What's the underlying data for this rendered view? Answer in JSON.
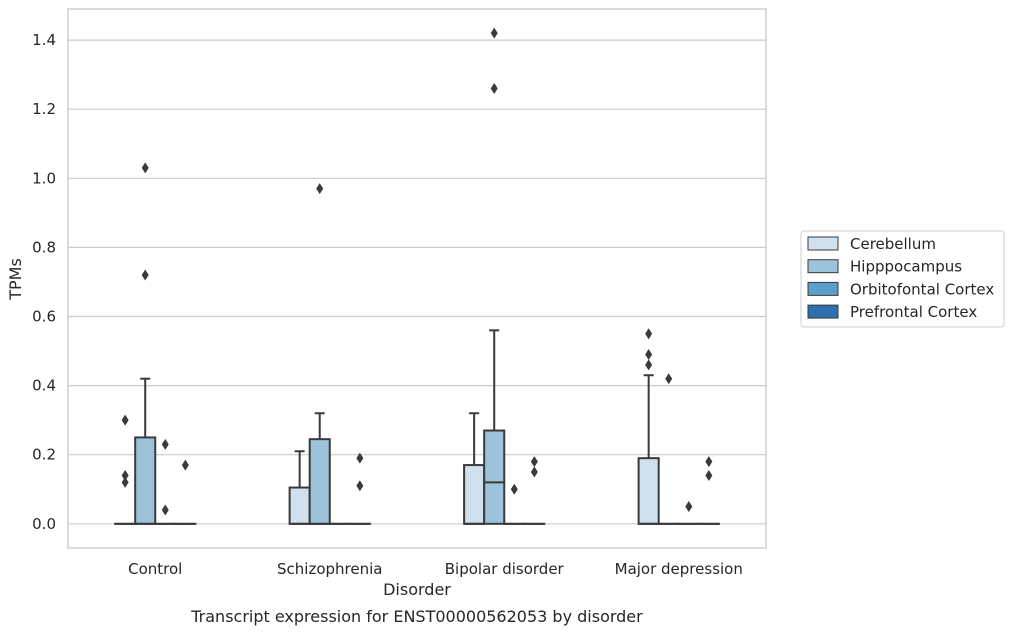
{
  "chart_data": {
    "type": "box",
    "caption": "Transcript expression for ENST00000562053 by disorder",
    "xlabel": "Disorder",
    "ylabel": "TPMs",
    "ylim": [
      -0.07,
      1.49
    ],
    "yticks": [
      0.0,
      0.2,
      0.4,
      0.6,
      0.8,
      1.0,
      1.2,
      1.4
    ],
    "ytick_labels": [
      "0.0",
      "0.2",
      "0.4",
      "0.6",
      "0.8",
      "1.0",
      "1.2",
      "1.4"
    ],
    "grid": "horizontal",
    "legend_position": "right",
    "categories": [
      "Control",
      "Schizophrenia",
      "Bipolar disorder",
      "Major depression"
    ],
    "series": [
      {
        "name": "Cerebellum",
        "color": "#d0e0ef",
        "boxes": [
          {
            "q1": 0,
            "median": 0,
            "q3": 0,
            "whisker_low": 0,
            "whisker_high": 0,
            "outliers": [
              0.3,
              0.14,
              0.12
            ]
          },
          {
            "q1": 0,
            "median": 0,
            "q3": 0.105,
            "whisker_low": 0,
            "whisker_high": 0.21,
            "outliers": []
          },
          {
            "q1": 0,
            "median": 0,
            "q3": 0.17,
            "whisker_low": 0,
            "whisker_high": 0.32,
            "outliers": []
          },
          {
            "q1": 0,
            "median": 0,
            "q3": 0.19,
            "whisker_low": 0,
            "whisker_high": 0.43,
            "outliers": [
              0.55,
              0.49,
              0.46
            ]
          }
        ]
      },
      {
        "name": "Hipppocampus",
        "color": "#9cc3d9",
        "boxes": [
          {
            "q1": 0,
            "median": 0,
            "q3": 0.25,
            "whisker_low": 0,
            "whisker_high": 0.42,
            "outliers": [
              1.03,
              0.72
            ]
          },
          {
            "q1": 0,
            "median": 0,
            "q3": 0.245,
            "whisker_low": 0,
            "whisker_high": 0.32,
            "outliers": [
              0.97
            ]
          },
          {
            "q1": 0,
            "median": 0.12,
            "q3": 0.27,
            "whisker_low": 0,
            "whisker_high": 0.56,
            "outliers": [
              1.42,
              1.26
            ]
          },
          {
            "q1": 0,
            "median": 0,
            "q3": 0,
            "whisker_low": 0,
            "whisker_high": 0,
            "outliers": [
              0.42
            ]
          }
        ]
      },
      {
        "name": "Orbitofontal Cortex",
        "color": "#5b9ec9",
        "boxes": [
          {
            "q1": 0,
            "median": 0,
            "q3": 0,
            "whisker_low": 0,
            "whisker_high": 0,
            "outliers": [
              0.23,
              0.04
            ]
          },
          {
            "q1": 0,
            "median": 0,
            "q3": 0,
            "whisker_low": 0,
            "whisker_high": 0,
            "outliers": []
          },
          {
            "q1": 0,
            "median": 0,
            "q3": 0,
            "whisker_low": 0,
            "whisker_high": 0,
            "outliers": [
              0.1
            ]
          },
          {
            "q1": 0,
            "median": 0,
            "q3": 0,
            "whisker_low": 0,
            "whisker_high": 0,
            "outliers": [
              0.05
            ]
          }
        ]
      },
      {
        "name": "Prefrontal Cortex",
        "color": "#2f6fae",
        "boxes": [
          {
            "q1": 0,
            "median": 0,
            "q3": 0,
            "whisker_low": 0,
            "whisker_high": 0,
            "outliers": [
              0.17
            ]
          },
          {
            "q1": 0,
            "median": 0,
            "q3": 0,
            "whisker_low": 0,
            "whisker_high": 0,
            "outliers": [
              0.19,
              0.11
            ]
          },
          {
            "q1": 0,
            "median": 0,
            "q3": 0,
            "whisker_low": 0,
            "whisker_high": 0,
            "outliers": [
              0.18,
              0.15
            ]
          },
          {
            "q1": 0,
            "median": 0,
            "q3": 0,
            "whisker_low": 0,
            "whisker_high": 0,
            "outliers": [
              0.18,
              0.14
            ]
          }
        ]
      }
    ],
    "colors": {
      "axis_frame": "#cccccc",
      "grid": "#cccccc",
      "box_edge": "#3a3a3a",
      "legend_border": "#cccccc"
    }
  }
}
